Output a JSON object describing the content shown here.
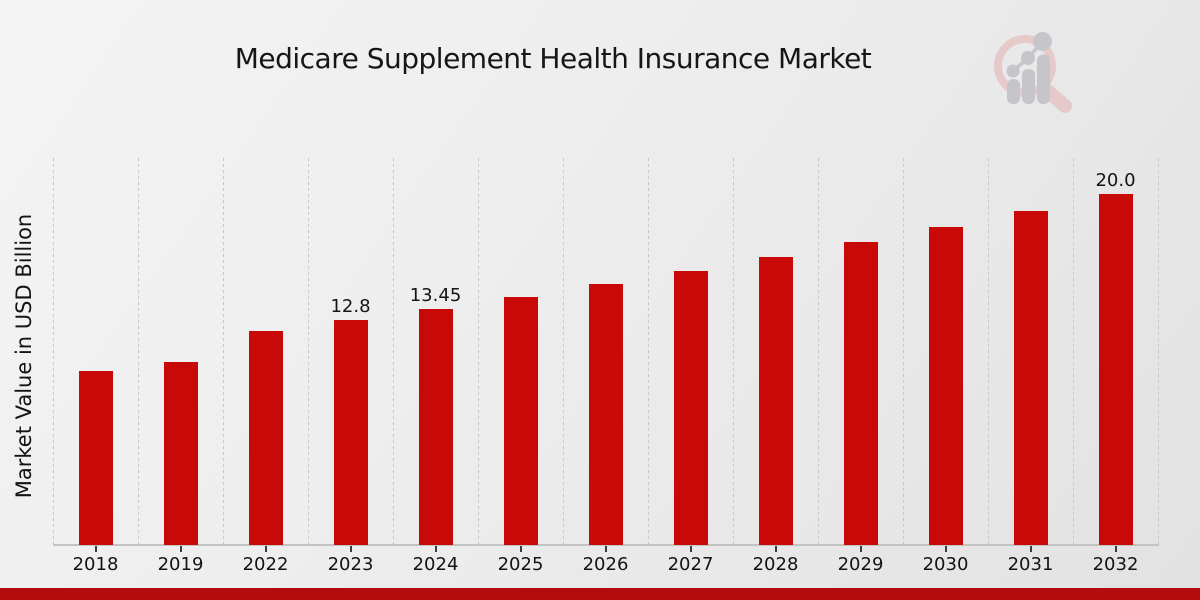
{
  "page": {
    "footer_accent_color": "#b40c0c",
    "background_color": "#ededed"
  },
  "logo": {
    "name": "market-research-magnifier-logo",
    "ring_color": "#e6caca",
    "bars_color": "#c6c6ca"
  },
  "chart_data": {
    "type": "bar",
    "title": "Medicare Supplement Health Insurance Market",
    "ylabel": "Market Value in USD Billion",
    "xlabel": "",
    "categories": [
      "2018",
      "2019",
      "2022",
      "2023",
      "2024",
      "2025",
      "2026",
      "2027",
      "2028",
      "2029",
      "2030",
      "2031",
      "2032"
    ],
    "values": [
      9.9,
      10.4,
      12.18,
      12.8,
      13.45,
      14.13,
      14.85,
      15.61,
      16.4,
      17.23,
      18.11,
      19.03,
      20.0
    ],
    "point_labels": [
      "",
      "",
      "",
      "12.8",
      "13.45",
      "",
      "",
      "",
      "",
      "",
      "",
      "",
      "20.0"
    ],
    "bar_color": "#c90808",
    "ylim": [
      0,
      22
    ],
    "grid": "vertical-dashed-at-category-boundaries",
    "legend": "none"
  }
}
